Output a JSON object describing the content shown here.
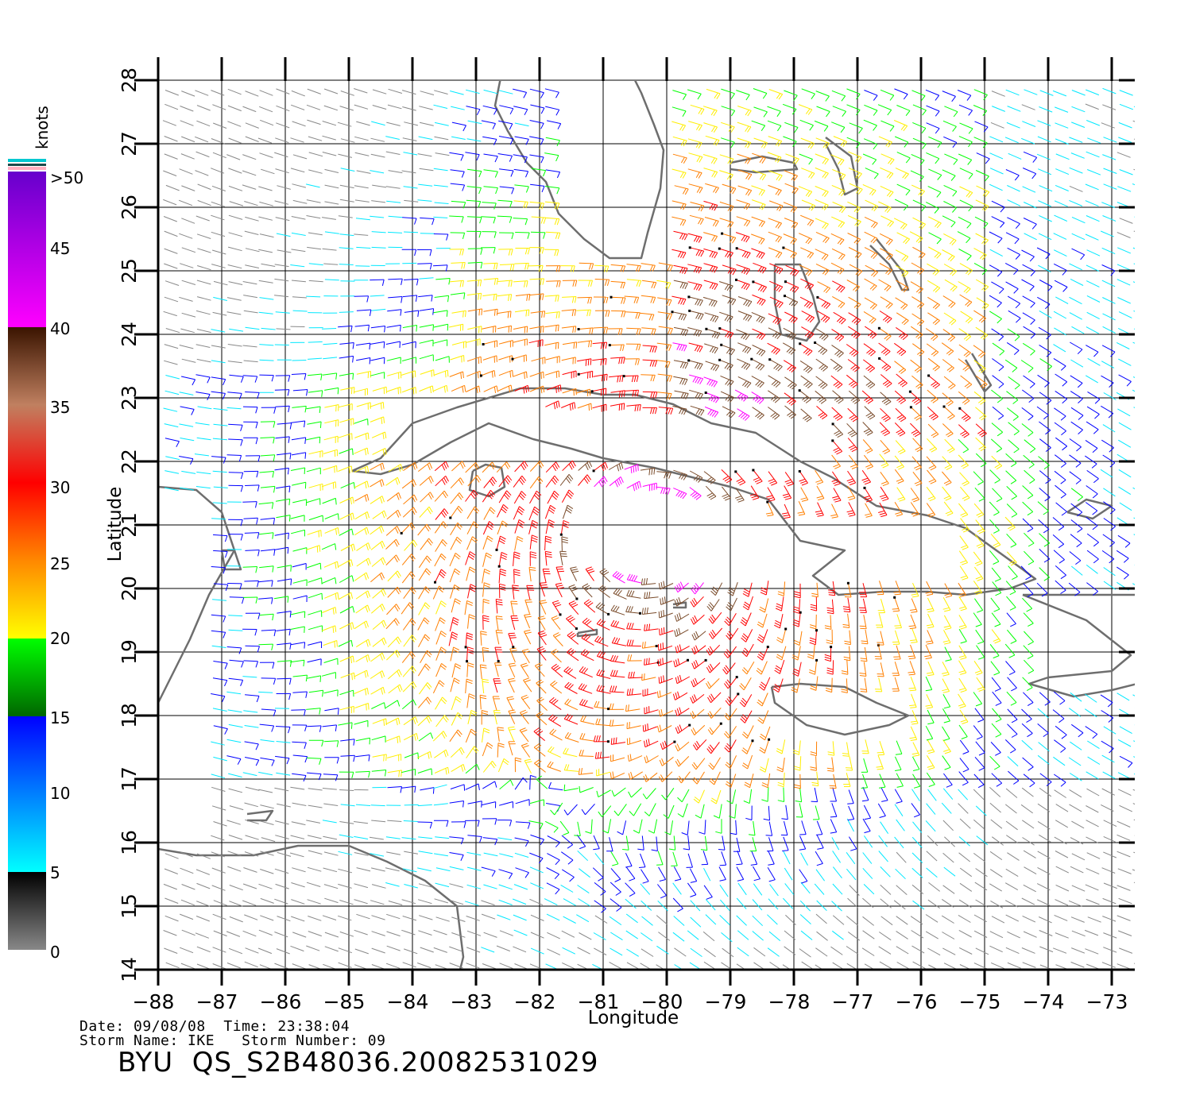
{
  "map": {
    "lon_ticks": [
      "−88",
      "−87",
      "−86",
      "−85",
      "−84",
      "−83",
      "−82",
      "−81",
      "−80",
      "−79",
      "−78",
      "−77",
      "−76",
      "−75",
      "−74",
      "−73"
    ],
    "lat_ticks": [
      "14",
      "15",
      "16",
      "17",
      "18",
      "19",
      "20",
      "21",
      "22",
      "23",
      "24",
      "25",
      "26",
      "27",
      "28"
    ],
    "x_label": "Longitude",
    "y_label": "Latitude",
    "lon_range": [
      -88,
      -72.6
    ],
    "lat_range": [
      14,
      28
    ]
  },
  "colorbar": {
    "unit": "knots",
    "labels": [
      ">50",
      "45",
      "40",
      "35",
      "30",
      "25",
      "20",
      "15",
      "10",
      "5",
      "0"
    ]
  },
  "storm_center": {
    "lon": -80.2,
    "lat": 20.9
  },
  "info": {
    "line1": "Date: 09/08/08  Time: 23:38:04",
    "line2": "Storm Name: IKE   Storm Number: 09",
    "product": "BYU  QS_S2B48036.20082531029"
  },
  "colors": {
    "coastline": "#6e6e6e",
    "grid": "#000000",
    "speed_scale": [
      "#888888",
      "#00e8ff",
      "#0000ff",
      "#00ff00",
      "#ffee00",
      "#ff7f00",
      "#ff0000",
      "#7a4b2a",
      "#ff00ff",
      "#7a00d0"
    ]
  }
}
